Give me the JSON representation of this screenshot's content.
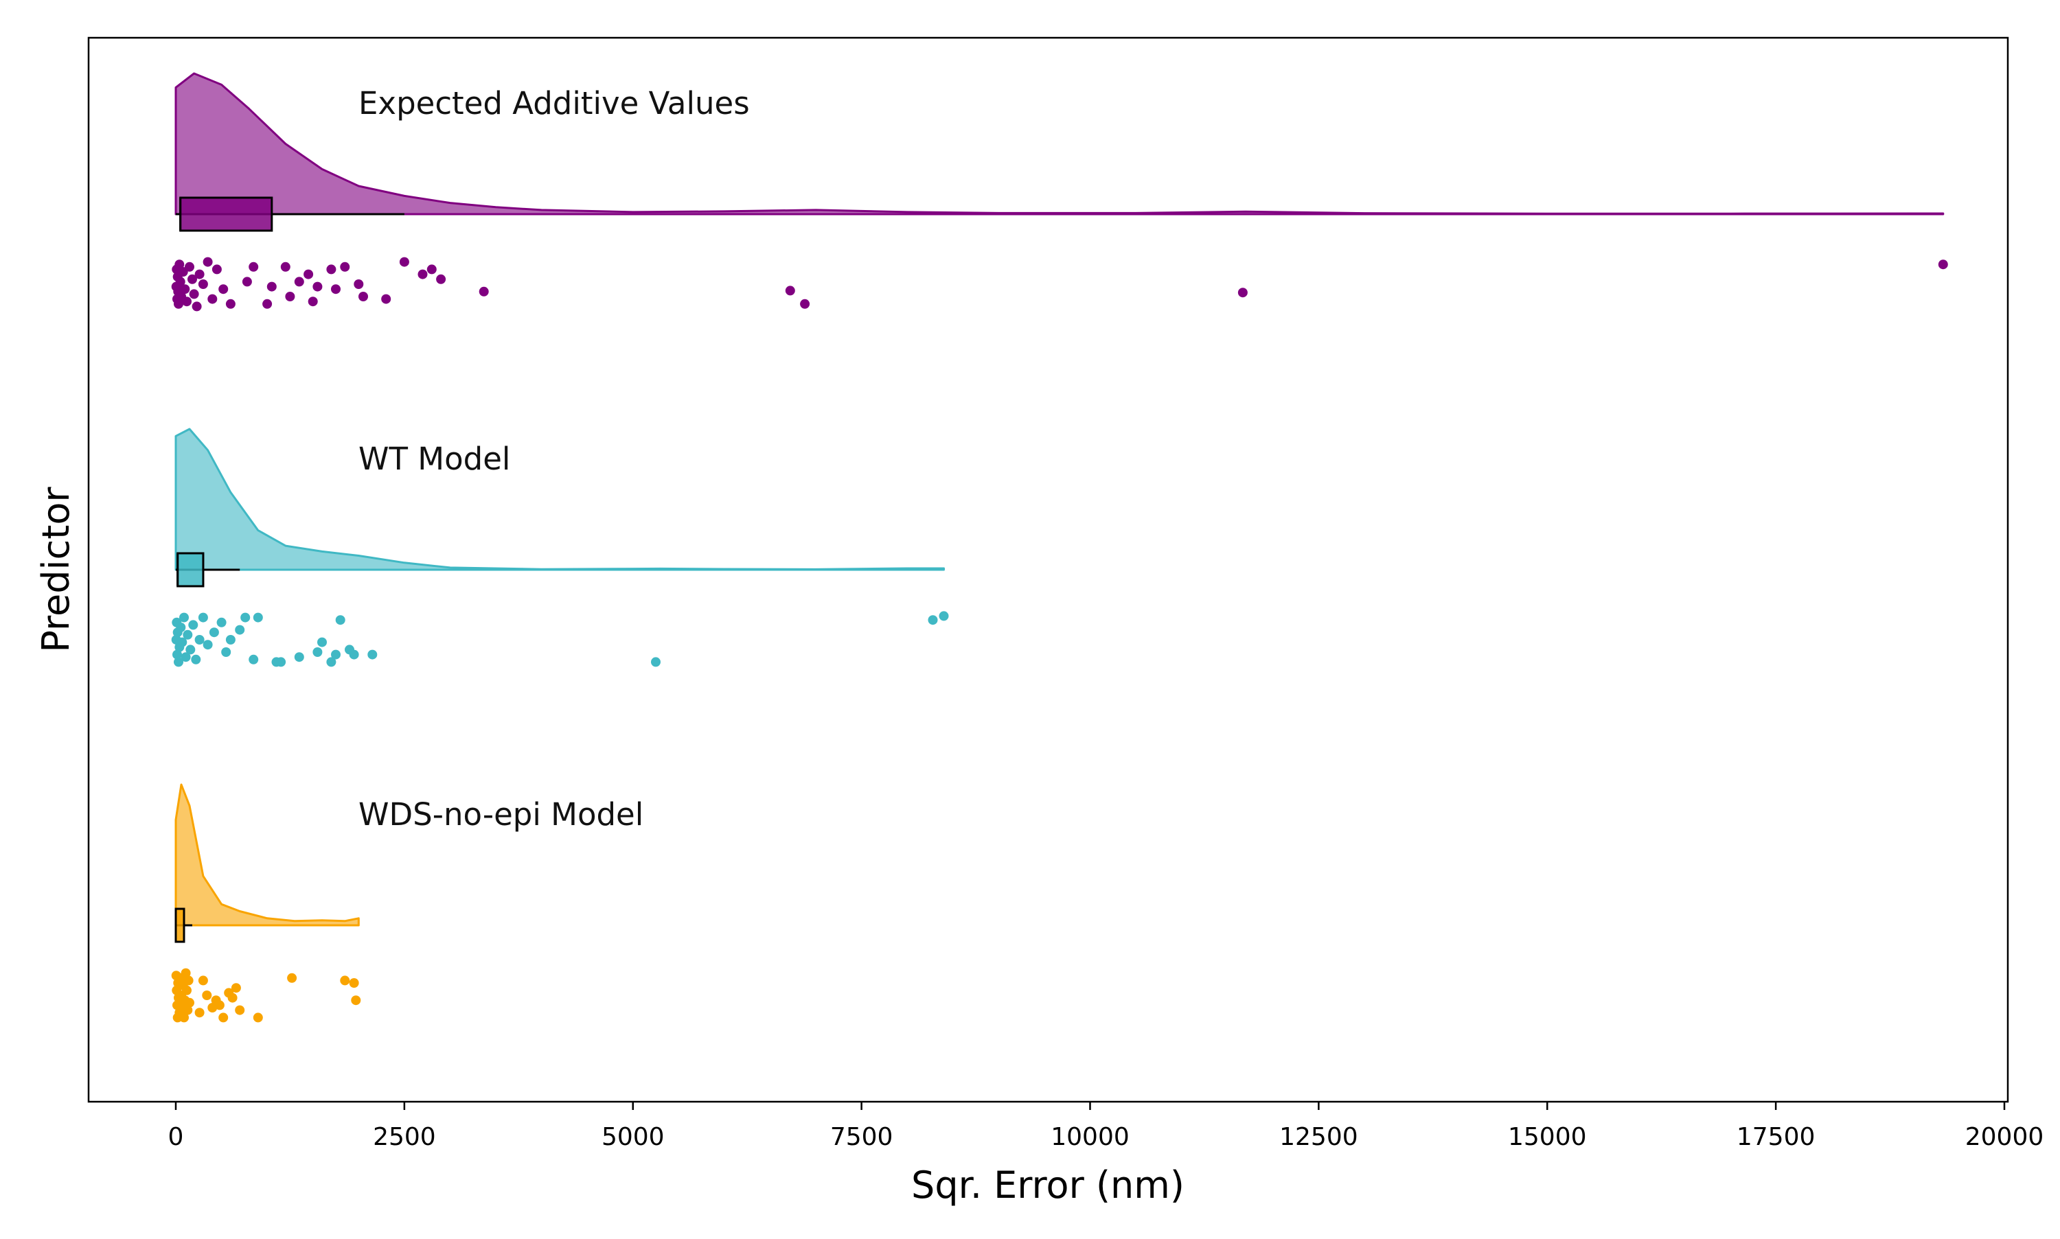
{
  "chart_data": {
    "type": "raincloud",
    "orientation": "horizontal",
    "xlabel": "Sqr. Error (nm)",
    "ylabel": "Predictor",
    "xlim": [
      -1000,
      20300
    ],
    "xticks": [
      0,
      2500,
      5000,
      7500,
      10000,
      12500,
      15000,
      17500,
      20000
    ],
    "grid": false,
    "legend": "none",
    "series": [
      {
        "name": "Expected Additive Values",
        "color": "#800080",
        "box": {
          "min": 0,
          "q1": 50,
          "median": 50,
          "q3": 1050,
          "max": 2500
        },
        "density": [
          [
            0,
            0.9
          ],
          [
            200,
            1.0
          ],
          [
            500,
            0.92
          ],
          [
            800,
            0.75
          ],
          [
            1200,
            0.5
          ],
          [
            1600,
            0.32
          ],
          [
            2000,
            0.2
          ],
          [
            2500,
            0.13
          ],
          [
            3000,
            0.08
          ],
          [
            3500,
            0.05
          ],
          [
            4000,
            0.03
          ],
          [
            5000,
            0.015
          ],
          [
            6000,
            0.02
          ],
          [
            7000,
            0.03
          ],
          [
            8000,
            0.015
          ],
          [
            9000,
            0.008
          ],
          [
            10500,
            0.008
          ],
          [
            11700,
            0.018
          ],
          [
            13000,
            0.007
          ],
          [
            15000,
            0.004
          ],
          [
            17000,
            0.004
          ],
          [
            19330,
            0.005
          ]
        ],
        "points": [
          [
            5,
            0.55
          ],
          [
            10,
            0.2
          ],
          [
            15,
            0.8
          ],
          [
            20,
            0.35
          ],
          [
            25,
            0.65
          ],
          [
            30,
            0.9
          ],
          [
            40,
            0.1
          ],
          [
            50,
            0.45
          ],
          [
            60,
            0.75
          ],
          [
            80,
            0.25
          ],
          [
            100,
            0.6
          ],
          [
            120,
            0.85
          ],
          [
            150,
            0.15
          ],
          [
            180,
            0.4
          ],
          [
            200,
            0.7
          ],
          [
            230,
            0.95
          ],
          [
            260,
            0.3
          ],
          [
            300,
            0.5
          ],
          [
            350,
            0.05
          ],
          [
            400,
            0.8
          ],
          [
            450,
            0.2
          ],
          [
            520,
            0.6
          ],
          [
            600,
            0.9
          ],
          [
            780,
            0.45
          ],
          [
            850,
            0.15
          ],
          [
            1000,
            0.9
          ],
          [
            1050,
            0.55
          ],
          [
            1200,
            0.15
          ],
          [
            1250,
            0.75
          ],
          [
            1350,
            0.45
          ],
          [
            1450,
            0.3
          ],
          [
            1500,
            0.85
          ],
          [
            1550,
            0.55
          ],
          [
            1700,
            0.2
          ],
          [
            1750,
            0.6
          ],
          [
            1850,
            0.15
          ],
          [
            2000,
            0.5
          ],
          [
            2050,
            0.75
          ],
          [
            2300,
            0.8
          ],
          [
            2500,
            0.05
          ],
          [
            2700,
            0.3
          ],
          [
            2800,
            0.2
          ],
          [
            2900,
            0.4
          ],
          [
            3370,
            0.65
          ],
          [
            6720,
            0.63
          ],
          [
            6880,
            0.9
          ],
          [
            11670,
            0.67
          ],
          [
            19330,
            0.1
          ]
        ]
      },
      {
        "name": "WT Model",
        "color": "#40b8c4",
        "box": {
          "min": 0,
          "q1": 20,
          "median": 20,
          "q3": 300,
          "max": 700
        },
        "density": [
          [
            0,
            0.95
          ],
          [
            150,
            1.0
          ],
          [
            350,
            0.85
          ],
          [
            600,
            0.55
          ],
          [
            900,
            0.28
          ],
          [
            1200,
            0.17
          ],
          [
            1600,
            0.13
          ],
          [
            2000,
            0.1
          ],
          [
            2500,
            0.05
          ],
          [
            3000,
            0.015
          ],
          [
            4000,
            0.004
          ],
          [
            5000,
            0.007
          ],
          [
            5300,
            0.008
          ],
          [
            6000,
            0.005
          ],
          [
            7000,
            0.003
          ],
          [
            8000,
            0.01
          ],
          [
            8400,
            0.01
          ]
        ],
        "points": [
          [
            5,
            0.5
          ],
          [
            10,
            0.15
          ],
          [
            15,
            0.8
          ],
          [
            20,
            0.35
          ],
          [
            30,
            0.95
          ],
          [
            40,
            0.65
          ],
          [
            55,
            0.25
          ],
          [
            70,
            0.55
          ],
          [
            90,
            0.05
          ],
          [
            110,
            0.85
          ],
          [
            130,
            0.4
          ],
          [
            160,
            0.7
          ],
          [
            190,
            0.2
          ],
          [
            220,
            0.9
          ],
          [
            260,
            0.5
          ],
          [
            300,
            0.05
          ],
          [
            350,
            0.6
          ],
          [
            420,
            0.35
          ],
          [
            500,
            0.15
          ],
          [
            550,
            0.75
          ],
          [
            600,
            0.5
          ],
          [
            700,
            0.3
          ],
          [
            760,
            0.05
          ],
          [
            850,
            0.9
          ],
          [
            900,
            0.05
          ],
          [
            1100,
            0.95
          ],
          [
            1150,
            0.95
          ],
          [
            1350,
            0.85
          ],
          [
            1550,
            0.75
          ],
          [
            1600,
            0.55
          ],
          [
            1700,
            0.95
          ],
          [
            1750,
            0.8
          ],
          [
            1800,
            0.1
          ],
          [
            1900,
            0.7
          ],
          [
            1950,
            0.8
          ],
          [
            2150,
            0.8
          ],
          [
            5250,
            0.95
          ],
          [
            8280,
            0.1
          ],
          [
            8400,
            0.02
          ]
        ]
      },
      {
        "name": "WDS-no-epi Model",
        "color": "#f9a400",
        "box": {
          "min": 0,
          "q1": 0,
          "median": 0,
          "q3": 90,
          "max": 180
        },
        "density": [
          [
            0,
            0.75
          ],
          [
            60,
            1.0
          ],
          [
            150,
            0.85
          ],
          [
            300,
            0.35
          ],
          [
            500,
            0.15
          ],
          [
            700,
            0.1
          ],
          [
            1000,
            0.05
          ],
          [
            1300,
            0.03
          ],
          [
            1600,
            0.035
          ],
          [
            1850,
            0.03
          ],
          [
            2000,
            0.05
          ]
        ],
        "points": [
          [
            5,
            0.1
          ],
          [
            10,
            0.4
          ],
          [
            15,
            0.7
          ],
          [
            20,
            0.95
          ],
          [
            25,
            0.25
          ],
          [
            30,
            0.55
          ],
          [
            40,
            0.85
          ],
          [
            50,
            0.15
          ],
          [
            60,
            0.5
          ],
          [
            70,
            0.75
          ],
          [
            80,
            0.3
          ],
          [
            90,
            0.95
          ],
          [
            100,
            0.6
          ],
          [
            110,
            0.05
          ],
          [
            120,
            0.4
          ],
          [
            130,
            0.8
          ],
          [
            140,
            0.2
          ],
          [
            150,
            0.65
          ],
          [
            260,
            0.85
          ],
          [
            300,
            0.2
          ],
          [
            340,
            0.5
          ],
          [
            400,
            0.75
          ],
          [
            440,
            0.6
          ],
          [
            480,
            0.7
          ],
          [
            520,
            0.95
          ],
          [
            580,
            0.45
          ],
          [
            620,
            0.55
          ],
          [
            660,
            0.35
          ],
          [
            700,
            0.8
          ],
          [
            900,
            0.95
          ],
          [
            1270,
            0.15
          ],
          [
            1850,
            0.2
          ],
          [
            1950,
            0.25
          ],
          [
            1970,
            0.6
          ]
        ]
      }
    ]
  }
}
